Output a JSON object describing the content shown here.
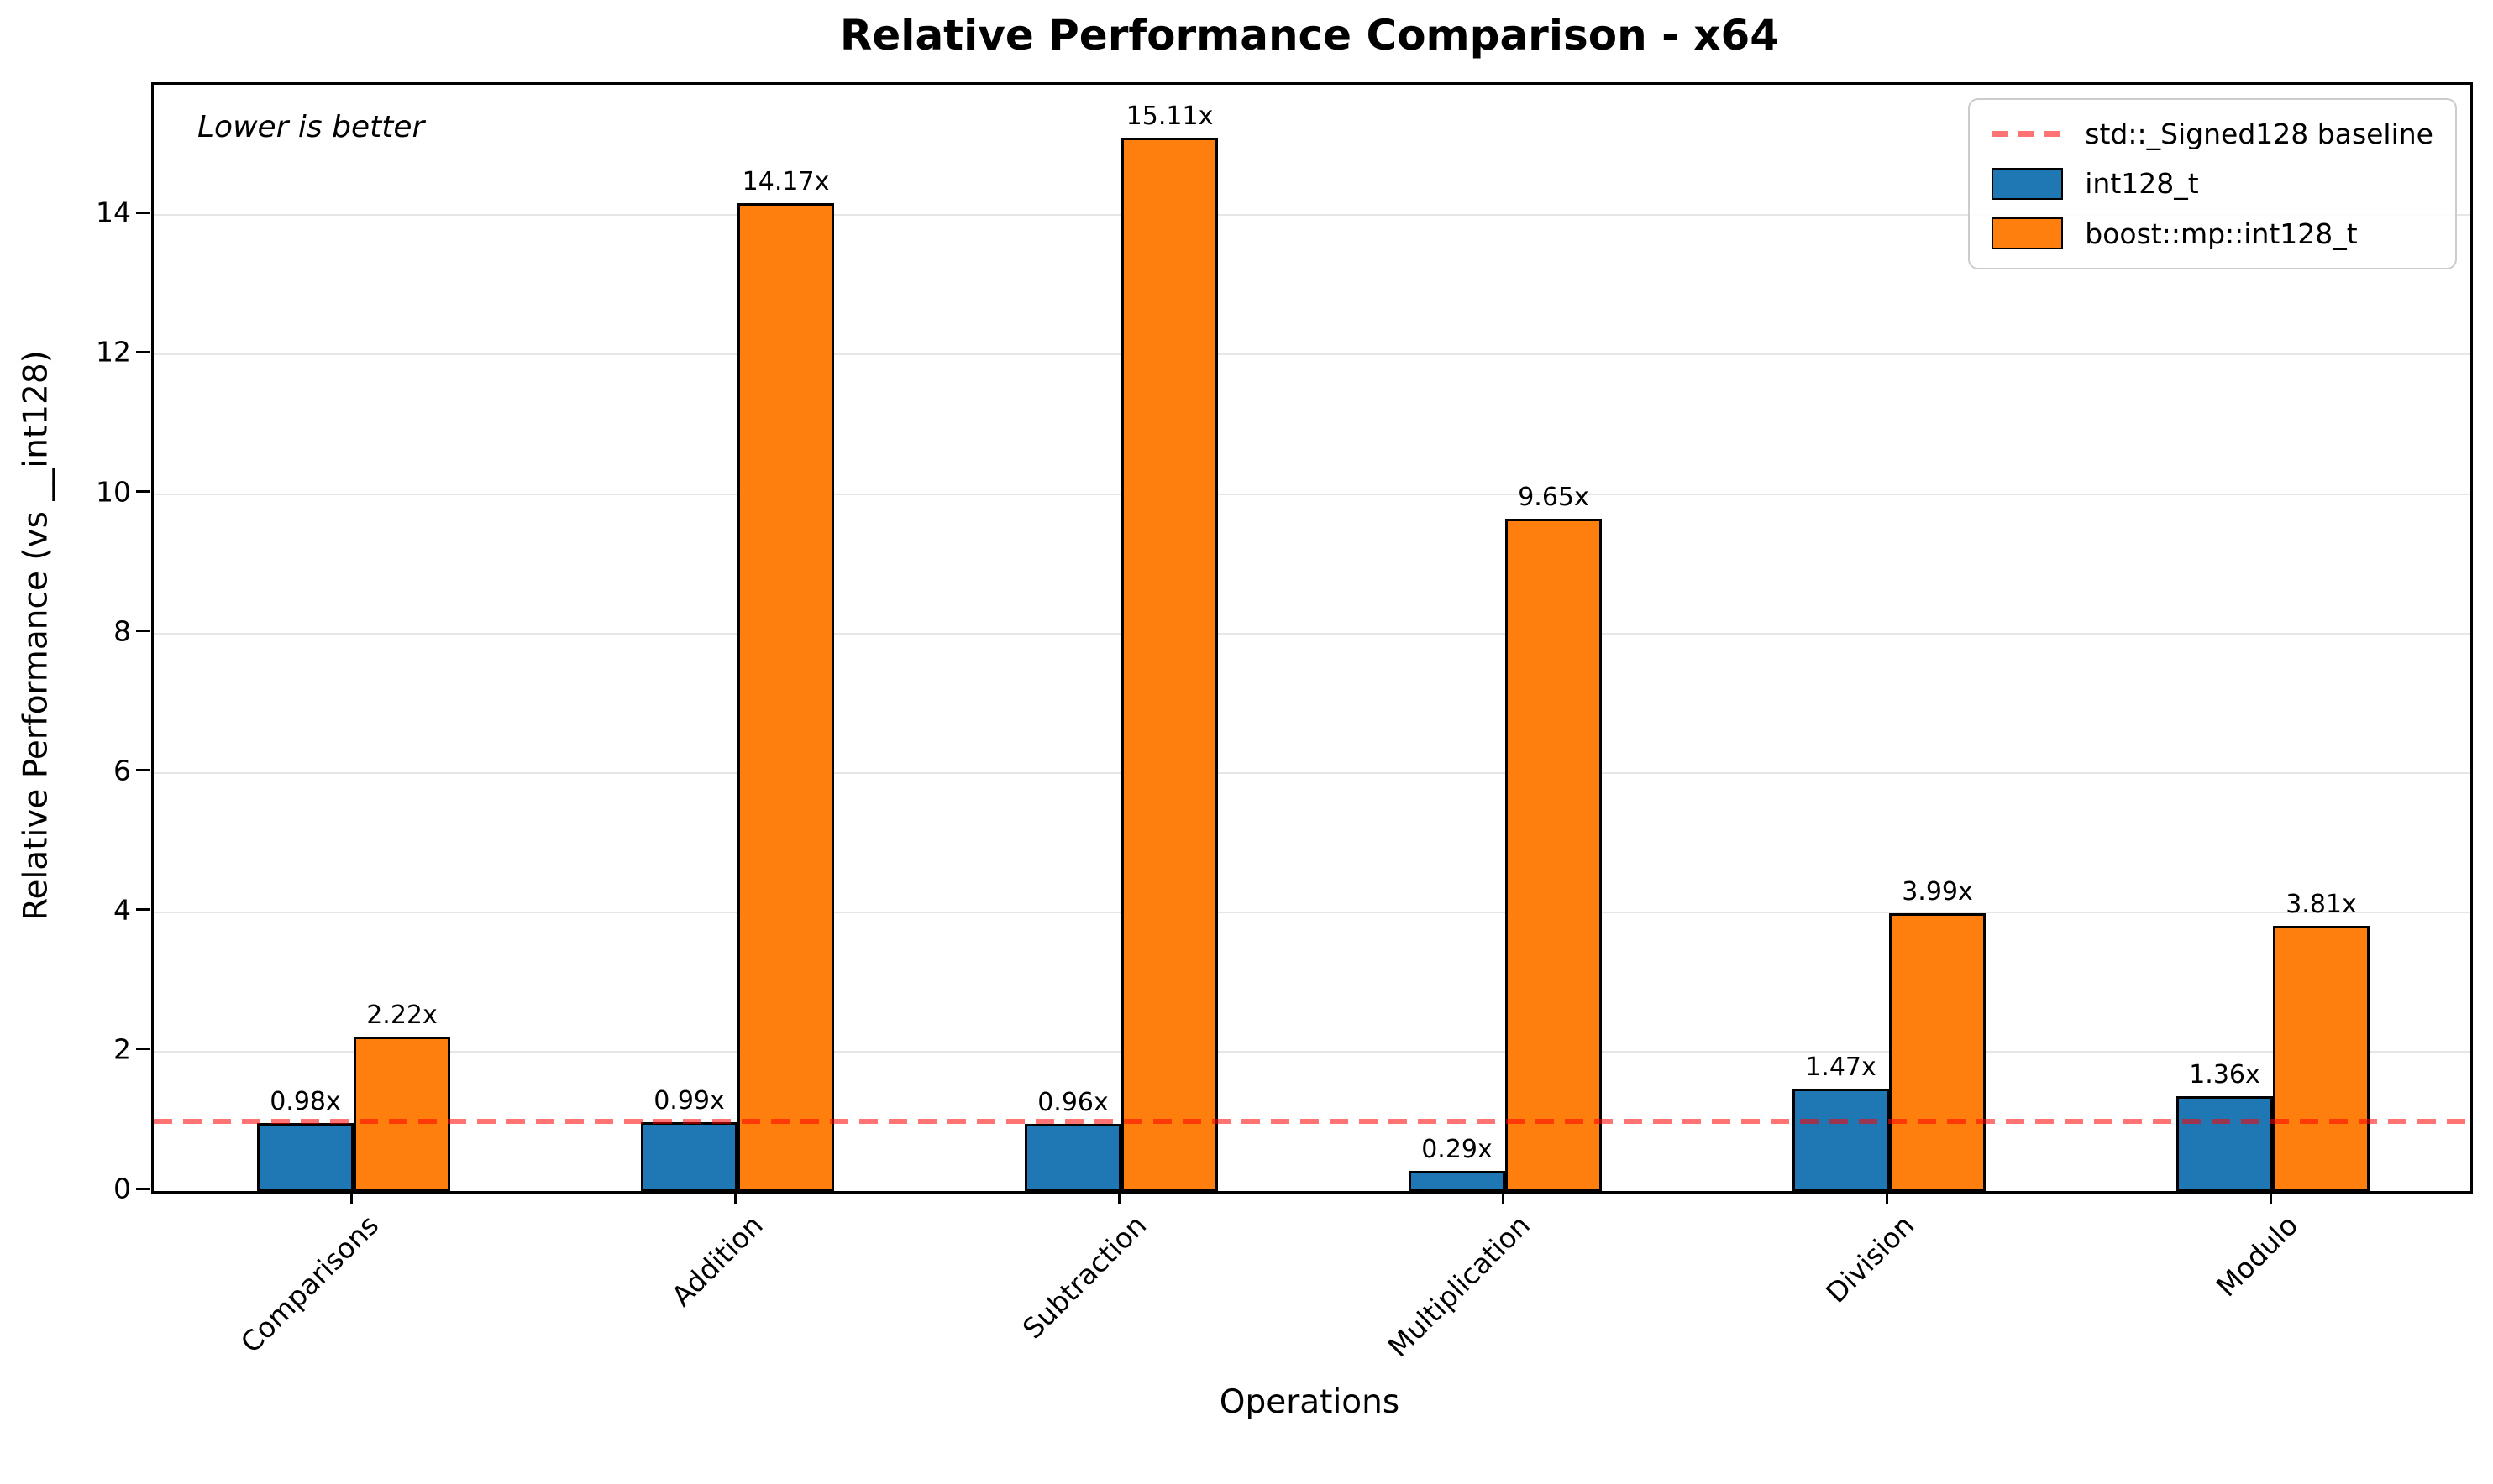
{
  "title": "Relative Performance Comparison - x64",
  "annotation": "Lower is better",
  "xlabel": "Operations",
  "ylabel": "Relative Performance (vs __int128)",
  "legend": {
    "baseline_label": "std::_Signed128 baseline",
    "series1_label": "int128_t",
    "series2_label": "boost::mp::int128_t"
  },
  "colors": {
    "series1": "#1f77b4",
    "series2": "#ff7f0e",
    "baseline_red": "#ff0000",
    "baseline_alpha": 0.55,
    "grid": "#e6e6e6",
    "bar_edge": "#000000",
    "legend_border": "#cccccc"
  },
  "chart_data": {
    "type": "bar",
    "title": "Relative Performance Comparison - x64",
    "xlabel": "Operations",
    "ylabel": "Relative Performance (vs __int128)",
    "categories": [
      "Comparisons",
      "Addition",
      "Subtraction",
      "Multiplication",
      "Division",
      "Modulo"
    ],
    "series": [
      {
        "name": "int128_t",
        "color": "#1f77b4",
        "values": [
          0.98,
          0.99,
          0.96,
          0.29,
          1.47,
          1.36
        ]
      },
      {
        "name": "boost::mp::int128_t",
        "color": "#ff7f0e",
        "values": [
          2.22,
          14.17,
          15.11,
          9.65,
          3.99,
          3.81
        ]
      }
    ],
    "bar_labels": [
      [
        "0.98x",
        "0.99x",
        "0.96x",
        "0.29x",
        "1.47x",
        "1.36x"
      ],
      [
        "2.22x",
        "14.17x",
        "15.11x",
        "9.65x",
        "3.99x",
        "3.81x"
      ]
    ],
    "baseline": {
      "value": 1.0,
      "label": "std::_Signed128 baseline"
    },
    "annotation": "Lower is better",
    "ylim": [
      0,
      15.87
    ],
    "yticks": [
      0,
      2,
      4,
      6,
      8,
      10,
      12,
      14
    ],
    "grid": "horizontal-only",
    "legend_position": "upper-right",
    "xticklabel_rotation": 45
  }
}
